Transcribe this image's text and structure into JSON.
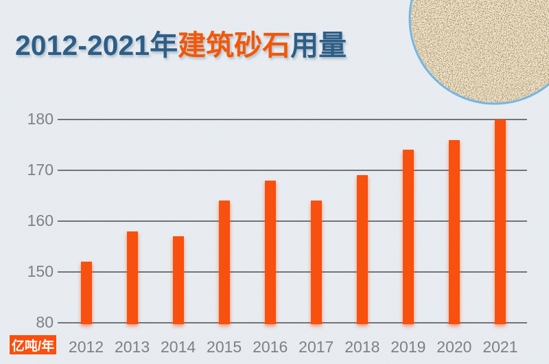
{
  "title": {
    "part1": "2012-2021年",
    "part2": "建筑砂石",
    "part3": "用量",
    "full": "2012-2021年建筑砂石用量"
  },
  "unit_badge": "亿吨/年",
  "colors": {
    "background": "#e9edf2",
    "bar": "#f8500e",
    "title_blue": "#2e5e85",
    "title_orange": "#f35708",
    "badge_bg": "#fb4f0e",
    "badge_text": "#ffffff",
    "gridline": "#717477",
    "tick_label": "#7d8084",
    "photo_border_blue": "#74b6e4"
  },
  "decor": {
    "sand_photo": "circular-photo-of-sand-gravel-aggregate"
  },
  "chart_data": {
    "type": "bar",
    "title": "2012-2021年建筑砂石用量",
    "ylabel": "亿吨/年",
    "categories": [
      "2012",
      "2013",
      "2014",
      "2015",
      "2016",
      "2017",
      "2018",
      "2019",
      "2020",
      "2021"
    ],
    "values": [
      152,
      158,
      157,
      164,
      168,
      164,
      169,
      174,
      176,
      180
    ],
    "yticks": [
      180,
      170,
      160,
      150,
      80
    ],
    "axis_note": "broken y-axis: baseline tick labeled 80, linear scale 150-180 above it",
    "grid": true,
    "legend": false
  }
}
